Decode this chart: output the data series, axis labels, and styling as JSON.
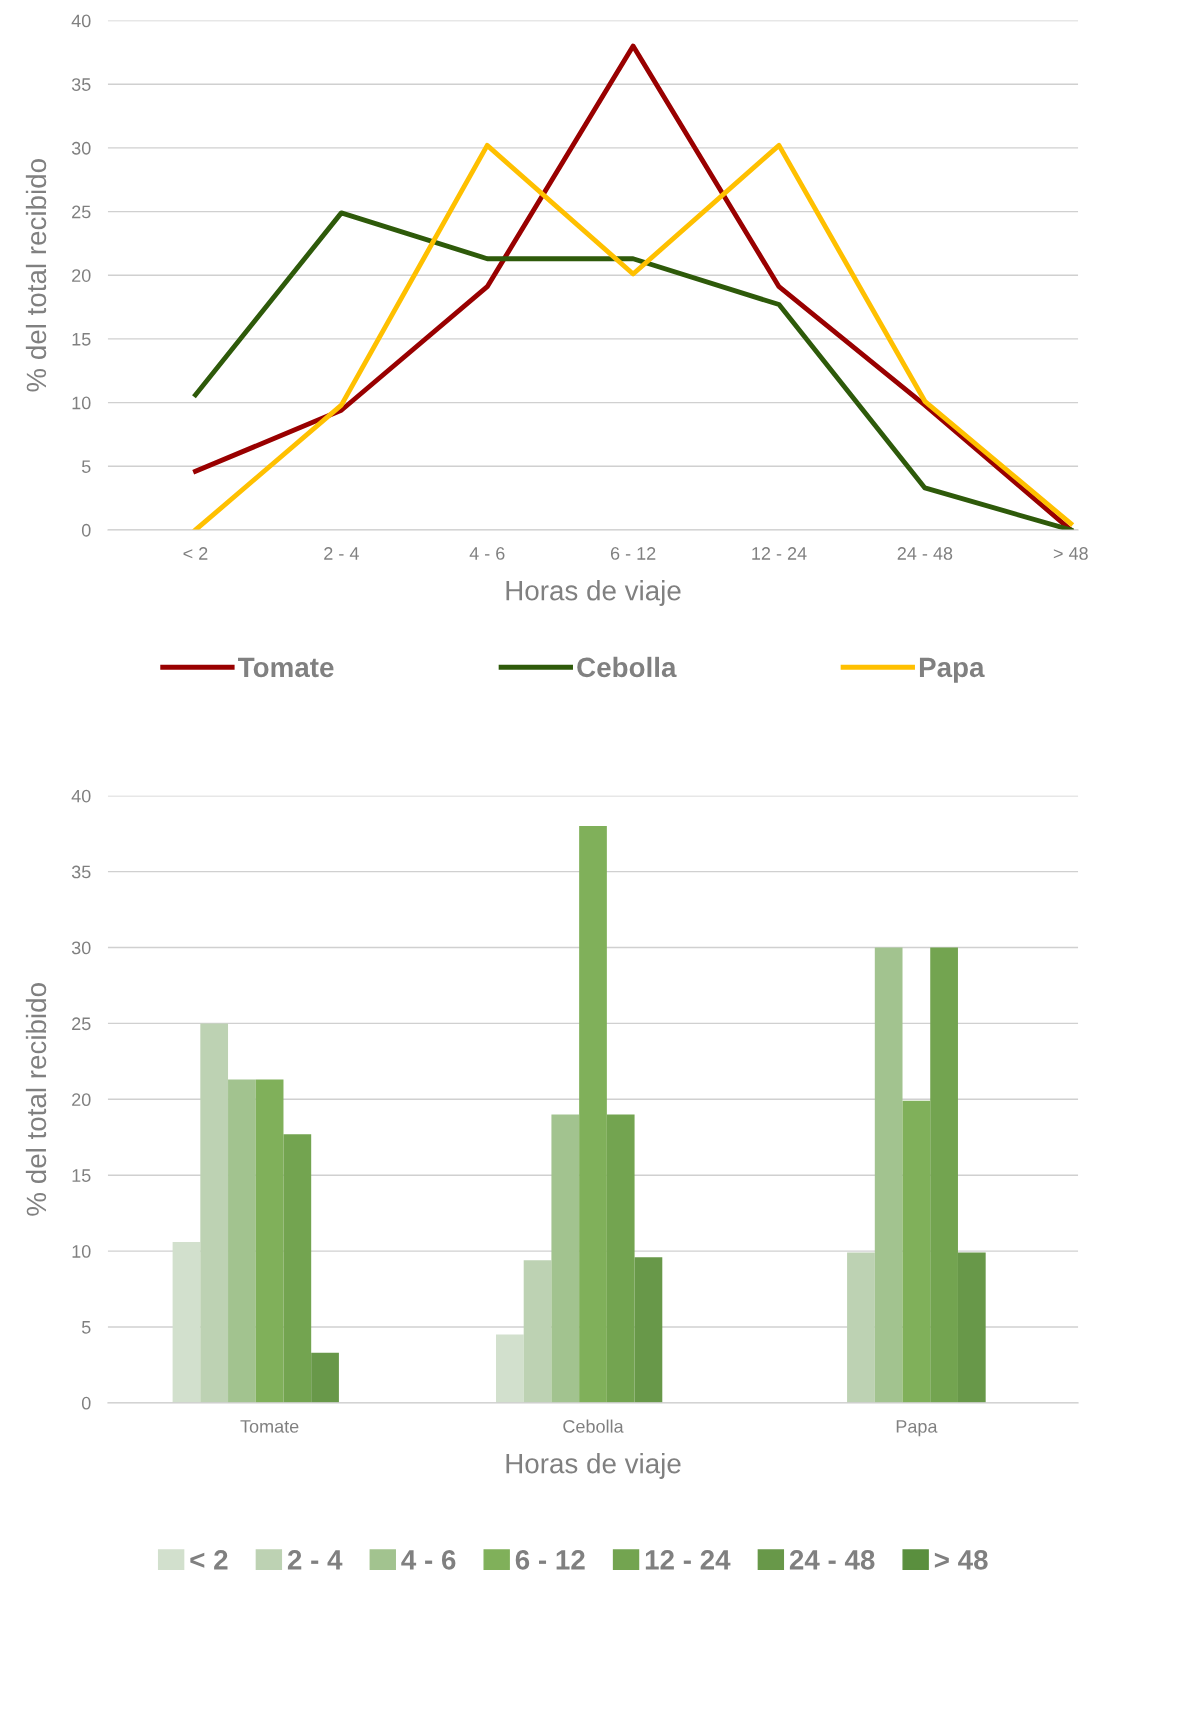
{
  "chart_data": [
    {
      "type": "line",
      "xlabel": "Horas de viaje",
      "ylabel": "% del total recibido",
      "categories": [
        "< 2",
        "2 - 4",
        "4 - 6",
        "6 - 12",
        "12 - 24",
        "24 - 48",
        "> 48"
      ],
      "series": [
        {
          "name": "Tomate",
          "color": "#990000",
          "values": [
            4.6,
            9.4,
            19.1,
            38,
            19.1,
            9.8,
            0
          ]
        },
        {
          "name": "Cebolla",
          "color": "#2e5a0a",
          "values": [
            10.6,
            24.9,
            21.3,
            21.3,
            17.7,
            3.3,
            0
          ]
        },
        {
          "name": "Papa",
          "color": "#ffc000",
          "values": [
            0,
            9.8,
            30.2,
            20.1,
            30.2,
            10.1,
            0.5
          ]
        }
      ],
      "ylim": [
        0,
        40
      ],
      "yticks": [
        0,
        5,
        10,
        15,
        20,
        25,
        30,
        35,
        40
      ],
      "grid": "y",
      "legend": "bottom",
      "marker": "none",
      "line_style": "solid"
    },
    {
      "type": "bar",
      "xlabel": "Horas de viaje",
      "ylabel": "% del total recibido",
      "categories": [
        "Tomate",
        "Cebolla",
        "Papa"
      ],
      "series": [
        {
          "name": "< 2",
          "color": "#d2e0cd",
          "values": [
            10.6,
            4.5,
            0
          ]
        },
        {
          "name": "2 - 4",
          "color": "#bdd2b3",
          "values": [
            25,
            9.4,
            9.9
          ]
        },
        {
          "name": "4 - 6",
          "color": "#a2c38f",
          "values": [
            21.3,
            19,
            30
          ]
        },
        {
          "name": "6 - 12",
          "color": "#80b05a",
          "values": [
            21.3,
            38,
            19.9
          ]
        },
        {
          "name": "12 - 24",
          "color": "#73a450",
          "values": [
            17.7,
            19,
            30
          ]
        },
        {
          "name": "24 - 48",
          "color": "#689849",
          "values": [
            3.3,
            9.6,
            9.9
          ]
        },
        {
          "name": "> 48",
          "color": "#5a8f3e",
          "values": [
            0,
            0,
            0
          ]
        }
      ],
      "ylim": [
        0,
        40
      ],
      "yticks": [
        0,
        5,
        10,
        15,
        20,
        25,
        30,
        35,
        40
      ],
      "grid": "y",
      "legend": "bottom"
    }
  ]
}
